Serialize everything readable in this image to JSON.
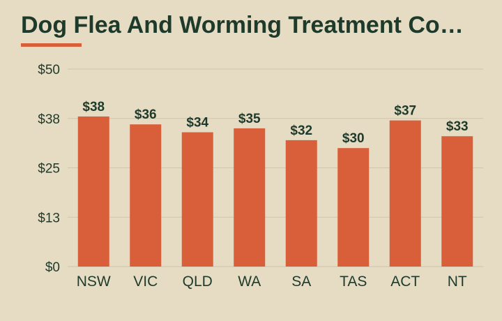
{
  "page": {
    "title": "Dog Flea And Worming Treatment Co…"
  },
  "colors": {
    "background": "#e6dcc4",
    "bar": "#d95f3b",
    "accent": "#d95f3b",
    "text": "#1e3a2a",
    "grid": "#cfc5ad"
  },
  "chart_data": {
    "type": "bar",
    "categories": [
      "NSW",
      "VIC",
      "QLD",
      "WA",
      "SA",
      "TAS",
      "ACT",
      "NT"
    ],
    "values": [
      38,
      36,
      34,
      35,
      32,
      30,
      37,
      33
    ],
    "value_labels": [
      "$38",
      "$36",
      "$34",
      "$35",
      "$32",
      "$30",
      "$37",
      "$33"
    ],
    "yticks": [
      0,
      12.5,
      25,
      37.5,
      50
    ],
    "ytick_labels": [
      "$0",
      "$13",
      "$25",
      "$38",
      "$50"
    ],
    "ylim": [
      0,
      50
    ],
    "grid": true,
    "legend": "none"
  }
}
